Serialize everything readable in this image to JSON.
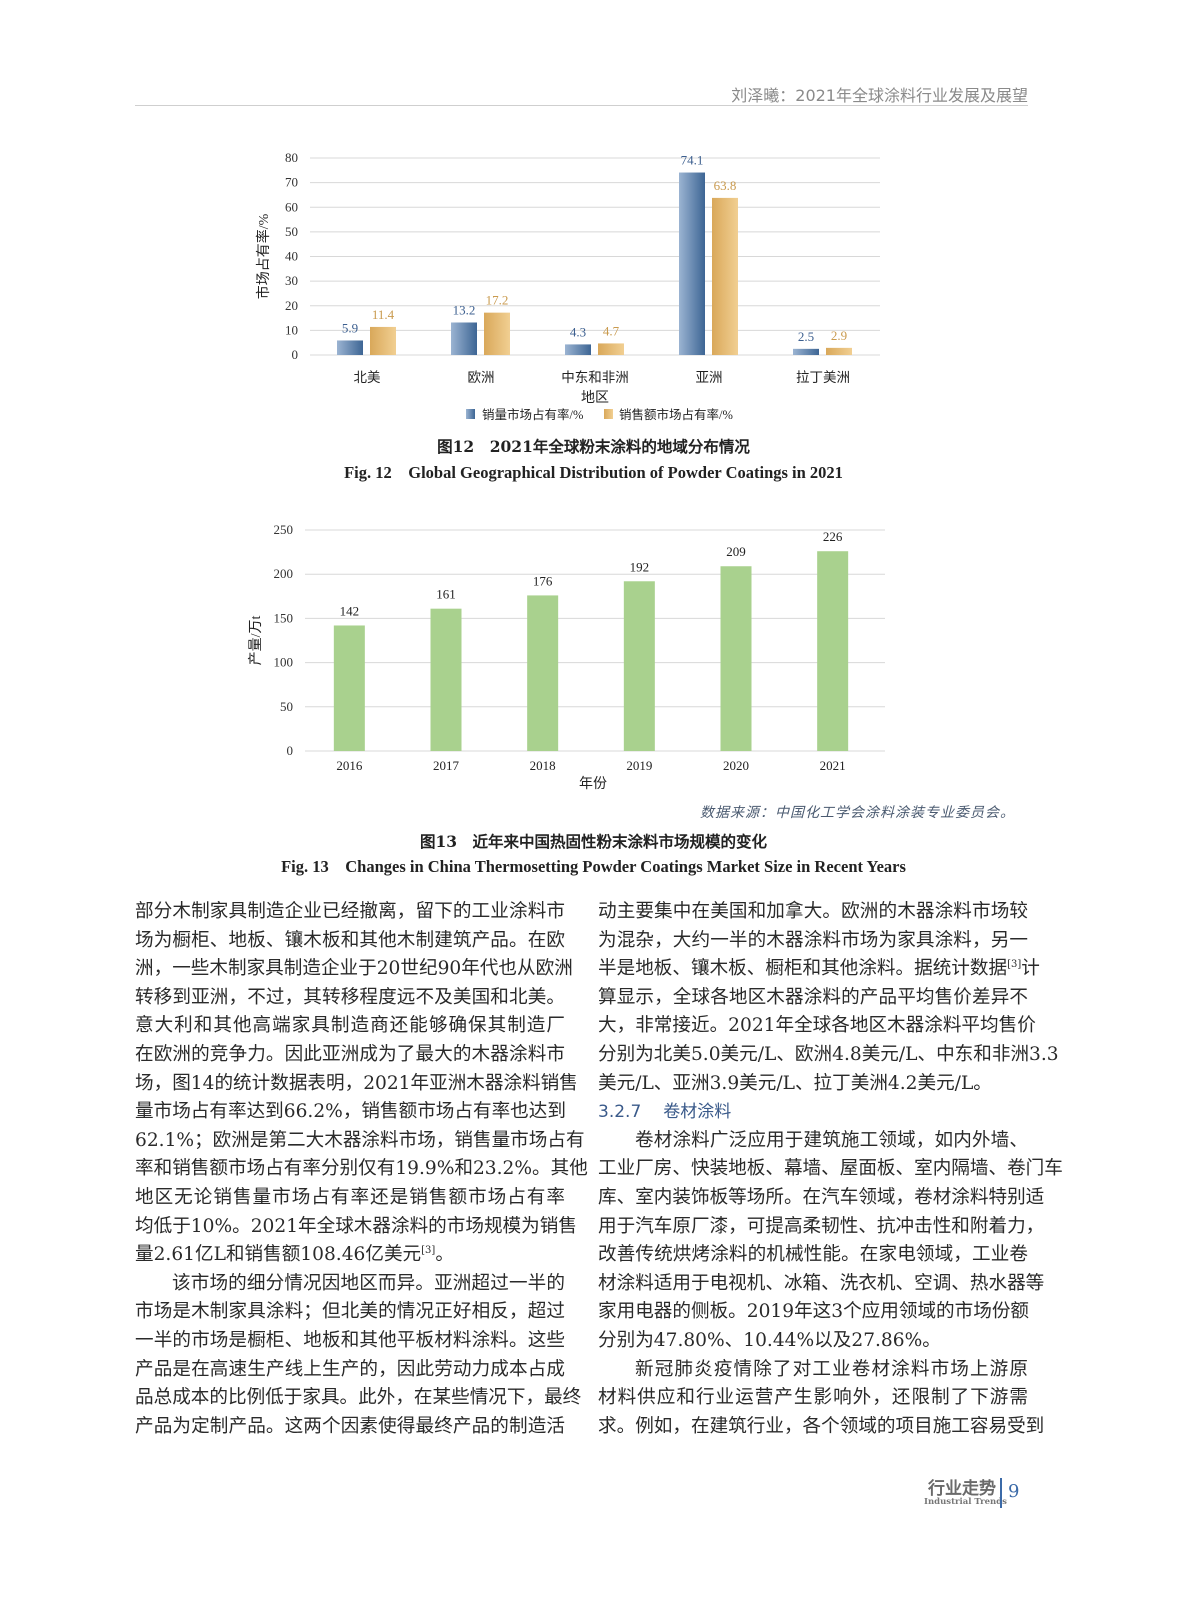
{
  "header": {
    "running_title": "刘泽曦：2021年全球涂料行业发展及展望"
  },
  "colors": {
    "blue": "#3d6594",
    "gold": "#e6b66c",
    "green": "#a9d18e",
    "label_blue": "#3c5f8f",
    "label_gold": "#c99a4e"
  },
  "chart_data": [
    {
      "type": "bar",
      "categories": [
        "北美",
        "欧洲",
        "中东和非洲",
        "亚洲",
        "拉丁美洲"
      ],
      "series": [
        {
          "name": "销量市场占有率/%",
          "values": [
            5.9,
            13.2,
            4.3,
            74.1,
            2.5
          ]
        },
        {
          "name": "销售额市场占有率/%",
          "values": [
            11.4,
            17.2,
            4.7,
            63.8,
            2.9
          ]
        }
      ],
      "xlabel": "地区",
      "ylabel": "市场占有率/%",
      "ylim": [
        0,
        80
      ],
      "yticks": [
        0,
        10,
        20,
        30,
        40,
        50,
        60,
        70,
        80
      ],
      "grid": true,
      "legend": "bottom"
    },
    {
      "type": "bar",
      "categories": [
        "2016",
        "2017",
        "2018",
        "2019",
        "2020",
        "2021"
      ],
      "values": [
        142,
        161,
        176,
        192,
        209,
        226
      ],
      "xlabel": "年份",
      "ylabel": "产量/万t",
      "ylim": [
        0,
        250
      ],
      "yticks": [
        0,
        50,
        100,
        150,
        200,
        250
      ],
      "grid": true
    }
  ],
  "figures": {
    "fig12": {
      "cn": "图12　2021年全球粉末涂料的地域分布情况",
      "en": "Fig. 12　Global Geographical Distribution of Powder Coatings in 2021"
    },
    "fig13": {
      "source": "数据来源：中国化工学会涂料涂装专业委员会。",
      "cn": "图13　近年来中国热固性粉末涂料市场规模的变化",
      "en": "Fig. 13　Changes in China Thermosetting Powder Coatings Market Size in Recent Years"
    }
  },
  "body": {
    "left": [
      {
        "indent": false,
        "ends": true,
        "lines": [
          "部分木制家具制造企业已经撤离，留下的工业涂料市",
          "场为橱柜、地板、镶木板和其他木制建筑产品。在欧",
          "洲，一些木制家具制造企业于20世纪90年代也从欧洲",
          "转移到亚洲，不过，其转移程度远不及美国和北美。",
          "意大利和其他高端家具制造商还能够确保其制造厂",
          "在欧洲的竞争力。因此亚洲成为了最大的木器涂料市",
          "场，图14的统计数据表明，2021年亚洲木器涂料销售",
          "量市场占有率达到66.2%，销售额市场占有率也达到",
          "62.1%；欧洲是第二大木器涂料市场，销售量市场占有",
          "率和销售额市场占有率分别仅有19.9%和23.2%。其他",
          "地区无论销售量市场占有率还是销售额市场占有率",
          "均低于10%。2021年全球木器涂料的市场规模为销售",
          "量2.61亿L和销售额108.46亿美元[3]。"
        ]
      },
      {
        "indent": true,
        "ends": false,
        "lines": [
          "该市场的细分情况因地区而异。亚洲超过一半的",
          "市场是木制家具涂料；但北美的情况正好相反，超过",
          "一半的市场是橱柜、地板和其他平板材料涂料。这些",
          "产品是在高速生产线上生产的，因此劳动力成本占成",
          "品总成本的比例低于家具。此外，在某些情况下，最终",
          "产品为定制产品。这两个因素使得最终产品的制造活"
        ]
      }
    ],
    "right": [
      {
        "indent": false,
        "ends": true,
        "lines": [
          "动主要集中在美国和加拿大。欧洲的木器涂料市场较",
          "为混杂，大约一半的木器涂料市场为家具涂料，另一",
          "半是地板、镶木板、橱柜和其他涂料。据统计数据[3]计",
          "算显示，全球各地区木器涂料的产品平均售价差异不",
          "大，非常接近。2021年全球各地区木器涂料平均售价",
          "分别为北美5.0美元/L、欧洲4.8美元/L、中东和非洲3.3",
          "美元/L、亚洲3.9美元/L、拉丁美洲4.2美元/L。"
        ]
      },
      {
        "heading": {
          "number": "3.2.7",
          "title": "卷材涂料"
        }
      },
      {
        "indent": true,
        "ends": true,
        "lines": [
          "卷材涂料广泛应用于建筑施工领域，如内外墙、",
          "工业厂房、快装地板、幕墙、屋面板、室内隔墙、卷门车",
          "库、室内装饰板等场所。在汽车领域，卷材涂料特别适",
          "用于汽车原厂漆，可提高柔韧性、抗冲击性和附着力，",
          "改善传统烘烤涂料的机械性能。在家电领域，工业卷",
          "材涂料适用于电视机、冰箱、洗衣机、空调、热水器等",
          "家用电器的侧板。2019年这3个应用领域的市场份额",
          "分别为47.80%、10.44%以及27.86%。"
        ]
      },
      {
        "indent": true,
        "ends": false,
        "lines": [
          "新冠肺炎疫情除了对工业卷材涂料市场上游原",
          "材料供应和行业运营产生影响外，还限制了下游需",
          "求。例如，在建筑行业，各个领域的项目施工容易受到"
        ]
      }
    ]
  },
  "footer": {
    "section_cn": "行业走势",
    "section_en": "Industrial Trends",
    "page_number": "9"
  }
}
